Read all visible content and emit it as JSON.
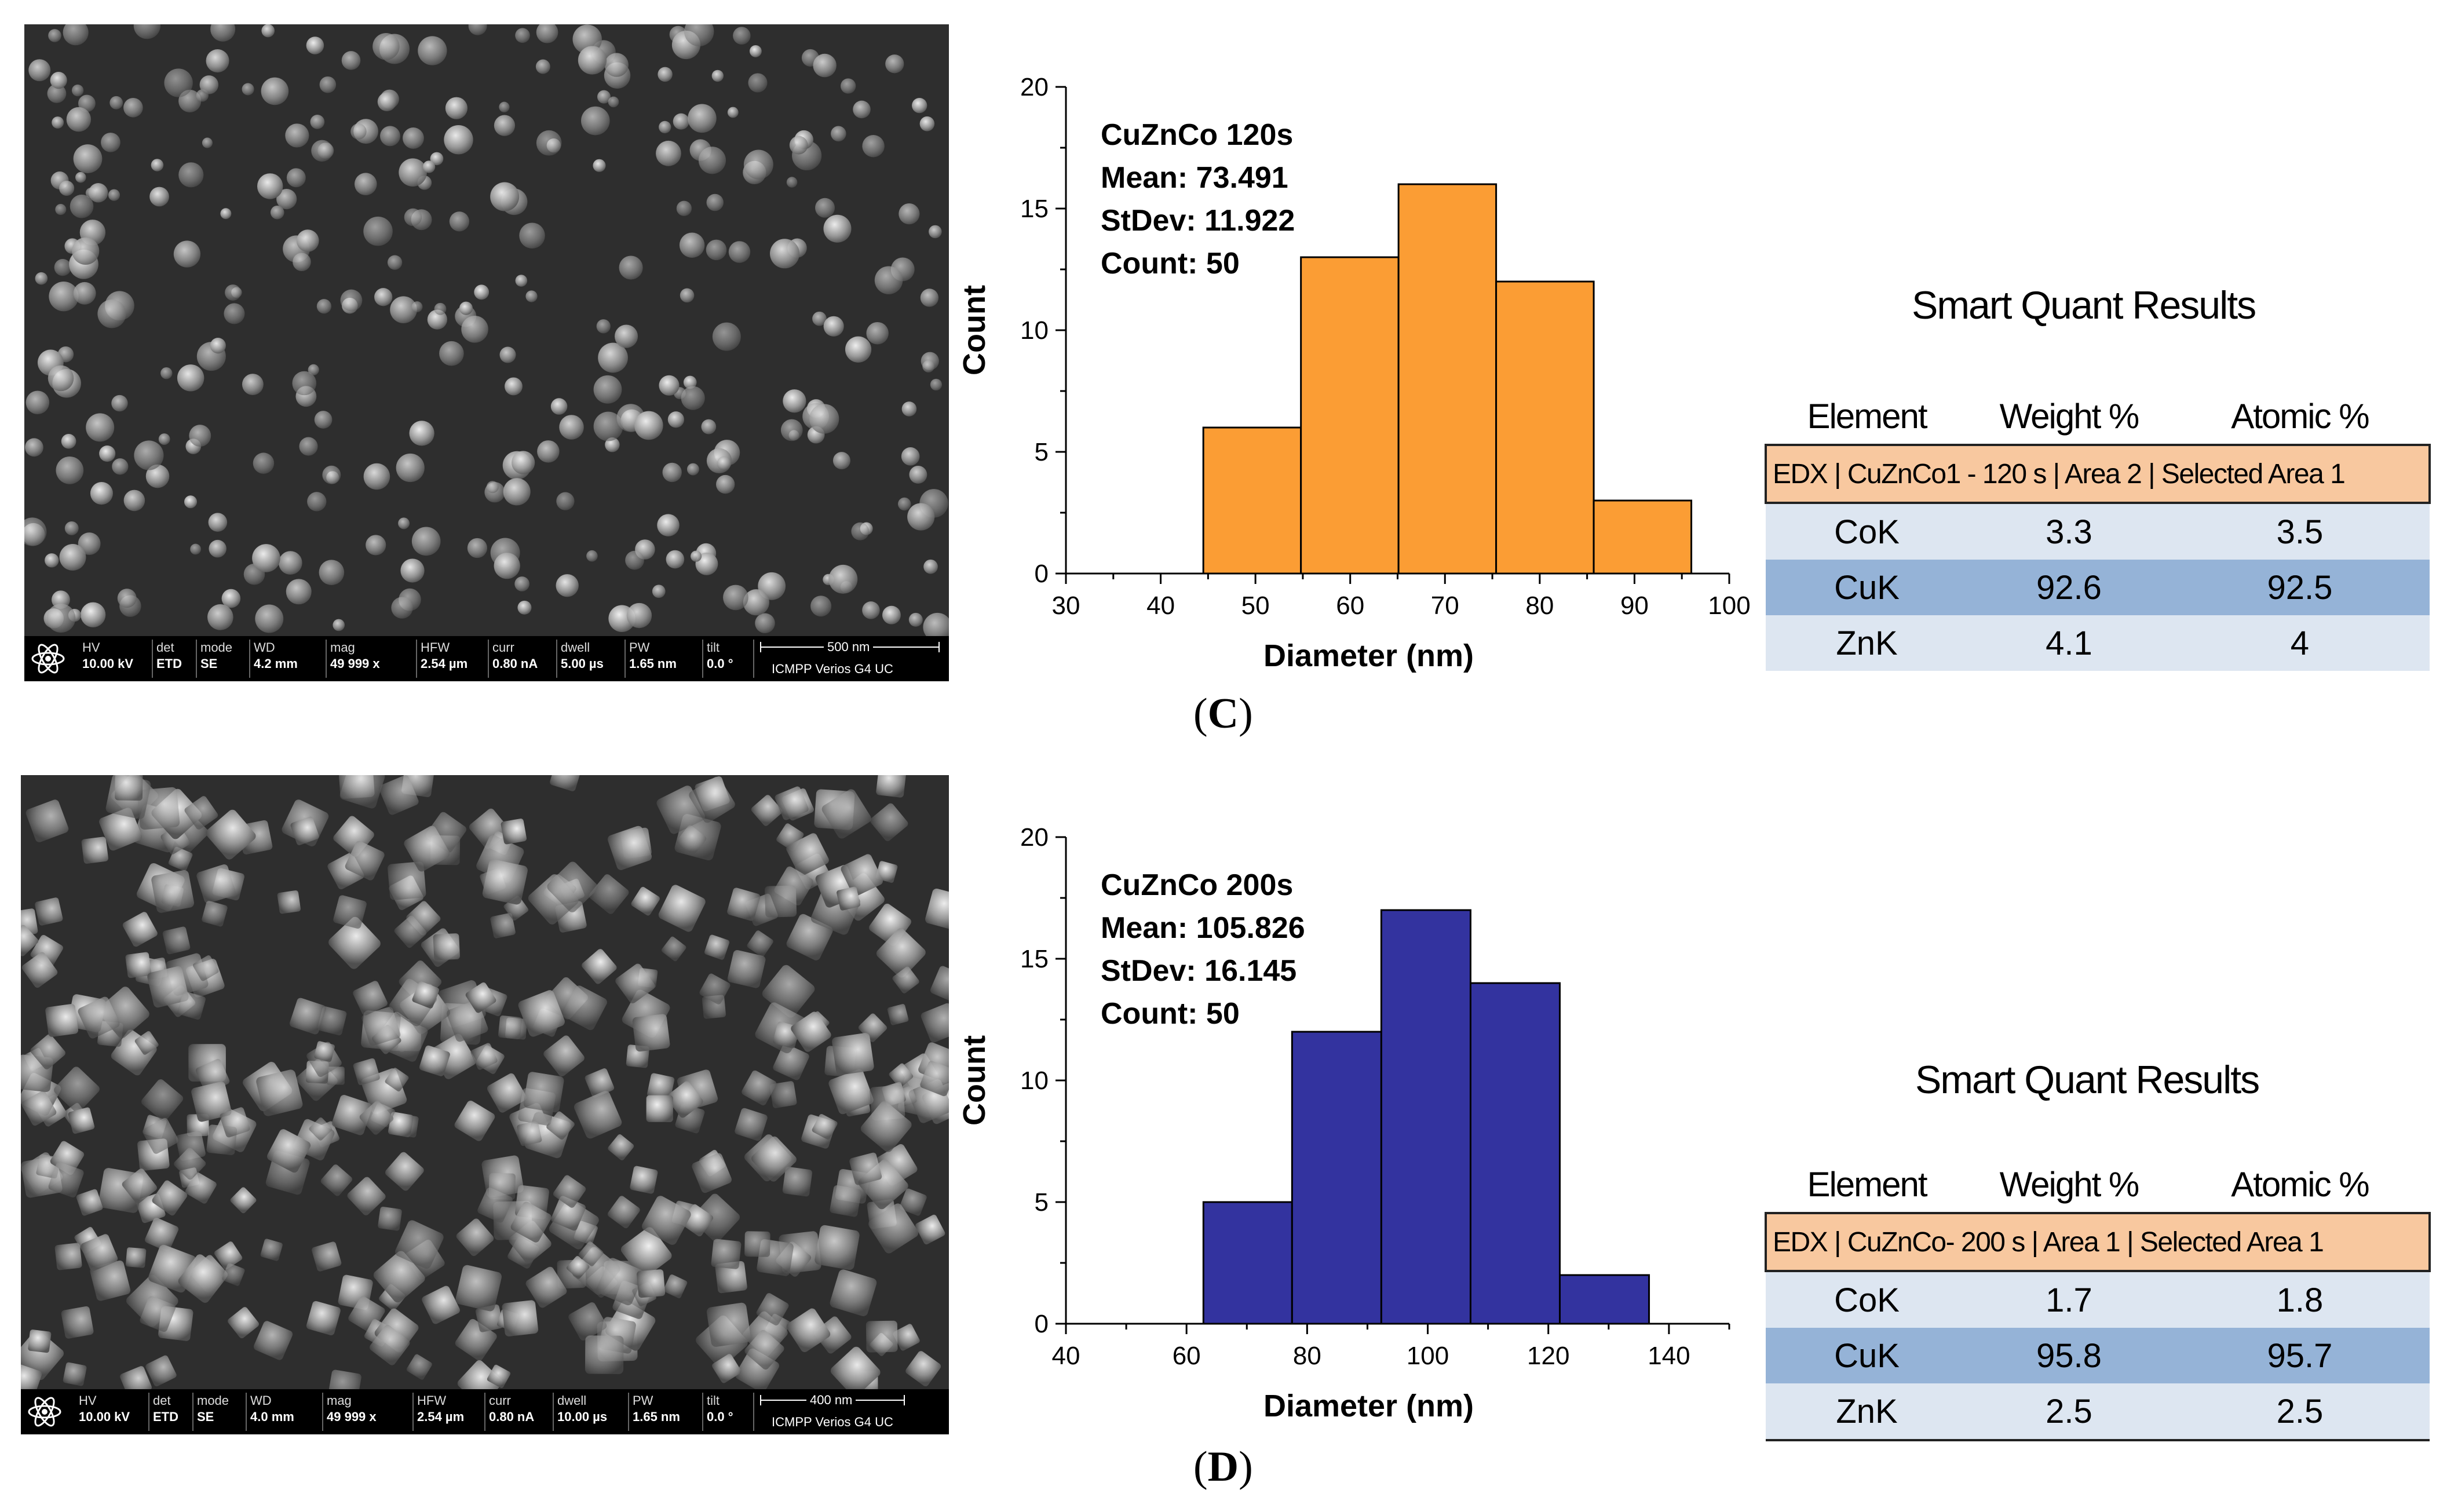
{
  "panels": [
    {
      "label": "C",
      "sem": {
        "fields": [
          {
            "key": "HV",
            "value": "10.00 kV"
          },
          {
            "key": "det",
            "value": "ETD"
          },
          {
            "key": "mode",
            "value": "SE"
          },
          {
            "key": "WD",
            "value": "4.2 mm"
          },
          {
            "key": "mag",
            "value": "49 999 x"
          },
          {
            "key": "HFW",
            "value": "2.54 µm"
          },
          {
            "key": "curr",
            "value": "0.80 nA"
          },
          {
            "key": "dwell",
            "value": "5.00 µs"
          },
          {
            "key": "PW",
            "value": "1.65 nm"
          },
          {
            "key": "tilt",
            "value": "0.0 °"
          }
        ],
        "scale_label": "500 nm",
        "instrument": "ICMPP Verios G4 UC"
      },
      "chart_data": {
        "type": "bar",
        "bin_edges": [
          44.5,
          54.8,
          65.1,
          75.4,
          85.7,
          96.0
        ],
        "values": [
          6,
          13,
          16,
          12,
          3
        ],
        "xlim": [
          30,
          100
        ],
        "ylim": [
          0,
          20
        ],
        "xticks": [
          30,
          40,
          50,
          60,
          70,
          80,
          90,
          100
        ],
        "yticks": [
          0,
          5,
          10,
          15,
          20
        ],
        "xlabel": "Diameter (nm)",
        "ylabel": "Count",
        "annotation": [
          "CuZnCo 120s",
          "Mean: 73.491",
          "StDev: 11.922",
          "Count: 50"
        ],
        "bar_color": "#fb9d34"
      },
      "quant": {
        "title": "Smart Quant Results",
        "headers": [
          "Element",
          "Weight %",
          "Atomic %"
        ],
        "edx_label": "EDX | CuZnCo1 - 120 s | Area 2 | Selected Area 1",
        "rows": [
          {
            "element": "CoK",
            "weight": "3.3",
            "atomic": "3.5"
          },
          {
            "element": "CuK",
            "weight": "92.6",
            "atomic": "92.5"
          },
          {
            "element": "ZnK",
            "weight": "4.1",
            "atomic": "4"
          }
        ]
      }
    },
    {
      "label": "D",
      "sem": {
        "fields": [
          {
            "key": "HV",
            "value": "10.00 kV"
          },
          {
            "key": "det",
            "value": "ETD"
          },
          {
            "key": "mode",
            "value": "SE"
          },
          {
            "key": "WD",
            "value": "4.0 mm"
          },
          {
            "key": "mag",
            "value": "49 999 x"
          },
          {
            "key": "HFW",
            "value": "2.54 µm"
          },
          {
            "key": "curr",
            "value": "0.80 nA"
          },
          {
            "key": "dwell",
            "value": "10.00 µs"
          },
          {
            "key": "PW",
            "value": "1.65 nm"
          },
          {
            "key": "tilt",
            "value": "0.0 °"
          }
        ],
        "scale_label": "400 nm",
        "instrument": "ICMPP Verios G4 UC"
      },
      "chart_data": {
        "type": "bar",
        "bin_edges": [
          62.8,
          77.5,
          92.3,
          107.1,
          121.9,
          136.7
        ],
        "values": [
          5,
          12,
          17,
          14,
          2
        ],
        "xlim": [
          40,
          150
        ],
        "ylim": [
          0,
          20
        ],
        "xticks": [
          40,
          60,
          80,
          100,
          120,
          140
        ],
        "yticks": [
          0,
          5,
          10,
          15,
          20
        ],
        "xlabel": "Diameter (nm)",
        "ylabel": "Count",
        "annotation": [
          "CuZnCo 200s",
          "Mean: 105.826",
          "StDev: 16.145",
          "Count: 50"
        ],
        "bar_color": "#33339f"
      },
      "quant": {
        "title": "Smart Quant Results",
        "headers": [
          "Element",
          "Weight %",
          "Atomic %"
        ],
        "edx_label": "EDX | CuZnCo- 200 s | Area 1 | Selected Area 1",
        "rows": [
          {
            "element": "CoK",
            "weight": "1.7",
            "atomic": "1.8"
          },
          {
            "element": "CuK",
            "weight": "95.8",
            "atomic": "95.7"
          },
          {
            "element": "ZnK",
            "weight": "2.5",
            "atomic": "2.5"
          }
        ]
      }
    }
  ]
}
